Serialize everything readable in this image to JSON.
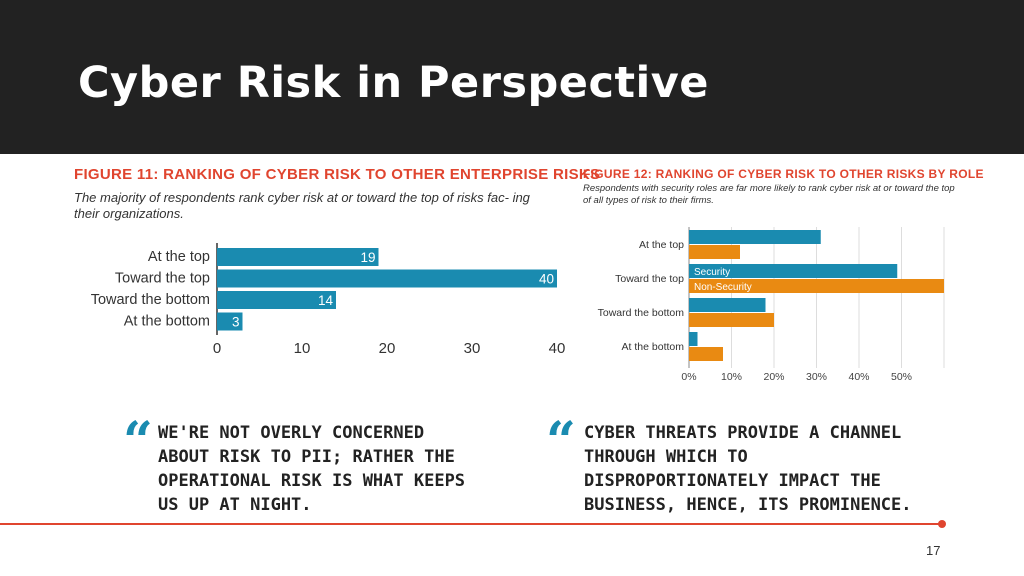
{
  "slide": {
    "title": "Cyber Risk in Perspective",
    "page_number": "17"
  },
  "figure1": {
    "title": "FIGURE 11: RANKING OF CYBER RISK TO OTHER ENTERPRISE RISKS",
    "subtitle": "The majority of respondents rank cyber risk at or toward the top of risks fac- ing their organizations."
  },
  "figure2": {
    "title": "FIGURE 12: RANKING OF CYBER RISK TO OTHER RISKS BY ROLE",
    "subtitle": "Respondents with security roles are far more likely to rank cyber risk at or toward the top of all types of risk to their firms."
  },
  "quotes": [
    {
      "mark": "“",
      "text": "We're not overly concerned about risk to PII; rather the operational risk is what keeps us up at night."
    },
    {
      "mark": "“",
      "text": "Cyber threats provide a channel through which to disproportionately impact the business, hence, its prominence."
    }
  ],
  "colors": {
    "security": "#1a8bb0",
    "non_security": "#e98a12",
    "accent": "#e0452f"
  },
  "chart_data": [
    {
      "type": "bar",
      "orientation": "horizontal",
      "title": "FIGURE 11: RANKING OF CYBER RISK TO OTHER ENTERPRISE RISKS",
      "categories": [
        "At the top",
        "Toward the top",
        "Toward the bottom",
        "At the bottom"
      ],
      "values": [
        19,
        40,
        14,
        3
      ],
      "data_labels": [
        "19",
        "40",
        "14",
        "3"
      ],
      "xlim": [
        0,
        40
      ],
      "xticks": [
        0,
        10,
        20,
        30,
        40
      ],
      "xtick_labels": [
        "0",
        "10",
        "20",
        "30",
        "40"
      ],
      "color": "#1a8bb0",
      "grid": false
    },
    {
      "type": "bar",
      "orientation": "horizontal",
      "title": "FIGURE 12: RANKING OF CYBER RISK TO OTHER RISKS BY ROLE",
      "categories": [
        "At the top",
        "Toward the top",
        "Toward the bottom",
        "At the bottom"
      ],
      "series": [
        {
          "name": "Security",
          "values": [
            31,
            49,
            18,
            2
          ],
          "color": "#1a8bb0"
        },
        {
          "name": "Non-Security",
          "values": [
            12,
            60,
            20,
            8
          ],
          "color": "#e98a12"
        }
      ],
      "xlim": [
        0,
        60
      ],
      "xticks": [
        0,
        10,
        20,
        30,
        40,
        50
      ],
      "xtick_labels": [
        "0%",
        "10%",
        "20%",
        "30%",
        "40%",
        "50%"
      ],
      "legend": "inside-bars",
      "grid": true
    }
  ]
}
